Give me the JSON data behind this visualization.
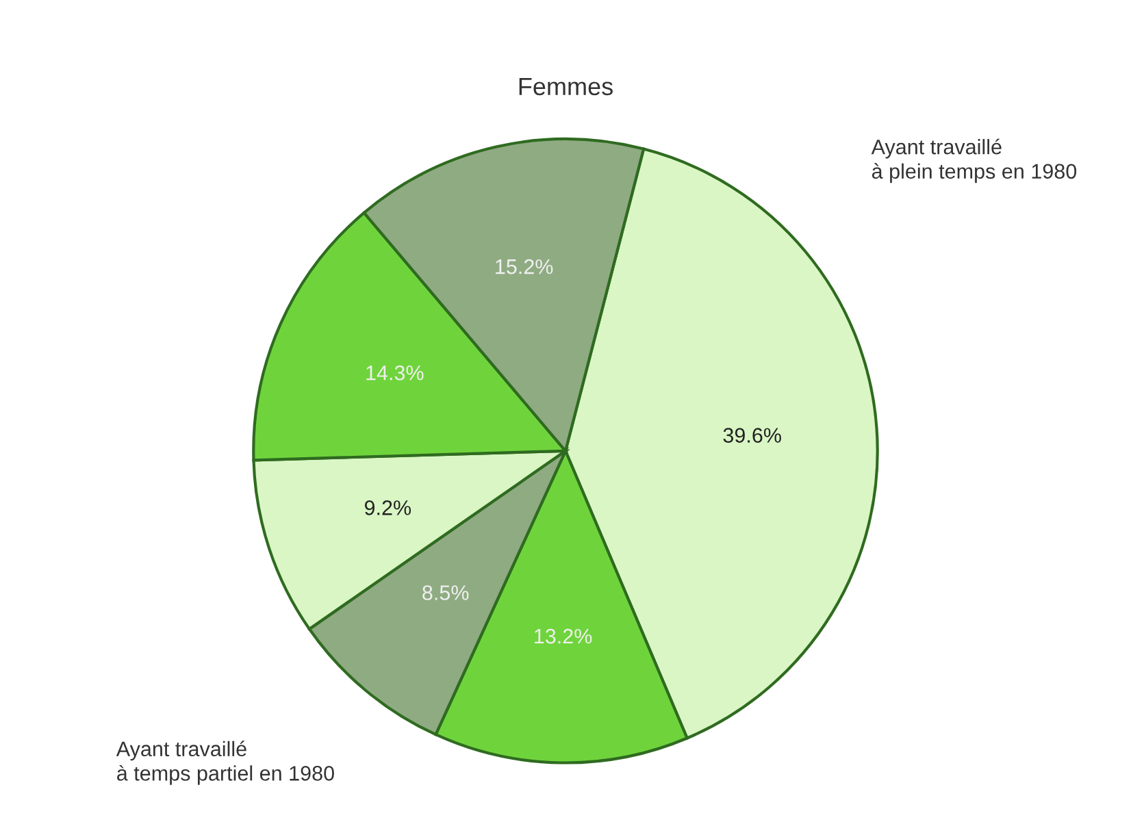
{
  "chart_data": {
    "type": "pie",
    "title": "Femmes",
    "categories": [
      null,
      null,
      null,
      null,
      null,
      null
    ],
    "values": [
      39.6,
      13.2,
      8.5,
      9.2,
      14.3,
      15.2
    ],
    "colors": [
      "#d9f6c4",
      "#6fd43c",
      "#8fab82",
      "#d9f6c4",
      "#6fd43c",
      "#8fab82"
    ],
    "value_labels": [
      "39.6%",
      "13.2%",
      "8.5%",
      "9.2%",
      "14.3%",
      "15.2%"
    ],
    "annotations": [
      "Ayant travaillé\nà plein temps en 1980",
      "Ayant travaillé\nà temps partiel en 1980"
    ]
  }
}
